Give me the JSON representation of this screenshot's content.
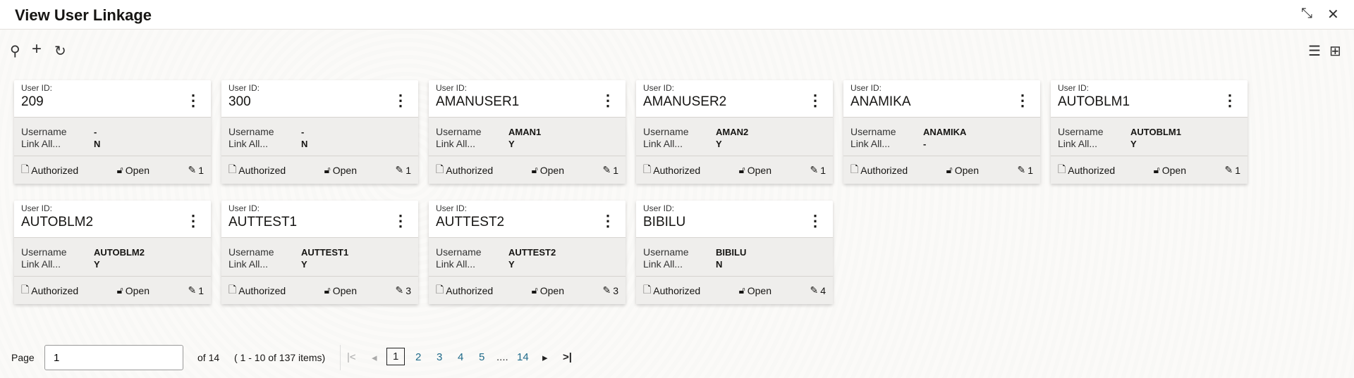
{
  "header": {
    "title": "View User Linkage",
    "icons": [
      "minimize-icon",
      "close-icon"
    ]
  },
  "toolbar": {
    "icons": [
      "search-icon",
      "add-icon",
      "refresh-icon",
      "list-view-icon",
      "grid-view-icon"
    ]
  },
  "card_labels": {
    "user_id": "User ID:",
    "username": "Username",
    "link_all": "Link All..."
  },
  "cards": [
    {
      "user_id": "209",
      "username": "-",
      "link_all": "N",
      "status": "Authorized",
      "lock": "Open",
      "mods": "1"
    },
    {
      "user_id": "300",
      "username": "-",
      "link_all": "N",
      "status": "Authorized",
      "lock": "Open",
      "mods": "1"
    },
    {
      "user_id": "AMANUSER1",
      "username": "AMAN1",
      "link_all": "Y",
      "status": "Authorized",
      "lock": "Open",
      "mods": "1"
    },
    {
      "user_id": "AMANUSER2",
      "username": "AMAN2",
      "link_all": "Y",
      "status": "Authorized",
      "lock": "Open",
      "mods": "1"
    },
    {
      "user_id": "ANAMIKA",
      "username": "ANAMIKA",
      "link_all": "-",
      "status": "Authorized",
      "lock": "Open",
      "mods": "1"
    },
    {
      "user_id": "AUTOBLM1",
      "username": "AUTOBLM1",
      "link_all": "Y",
      "status": "Authorized",
      "lock": "Open",
      "mods": "1"
    },
    {
      "user_id": "AUTOBLM2",
      "username": "AUTOBLM2",
      "link_all": "Y",
      "status": "Authorized",
      "lock": "Open",
      "mods": "1"
    },
    {
      "user_id": "AUTTEST1",
      "username": "AUTTEST1",
      "link_all": "Y",
      "status": "Authorized",
      "lock": "Open",
      "mods": "3"
    },
    {
      "user_id": "AUTTEST2",
      "username": "AUTTEST2",
      "link_all": "Y",
      "status": "Authorized",
      "lock": "Open",
      "mods": "3"
    },
    {
      "user_id": "BIBILU",
      "username": "BIBILU",
      "link_all": "N",
      "status": "Authorized",
      "lock": "Open",
      "mods": "4"
    }
  ],
  "pagination": {
    "page_label": "Page",
    "page_value": "1",
    "of_label": "of 14",
    "items_label": "( 1 - 10 of 137 items)",
    "pages": [
      "1",
      "2",
      "3",
      "4",
      "5",
      "....",
      "14"
    ],
    "current": "1"
  }
}
